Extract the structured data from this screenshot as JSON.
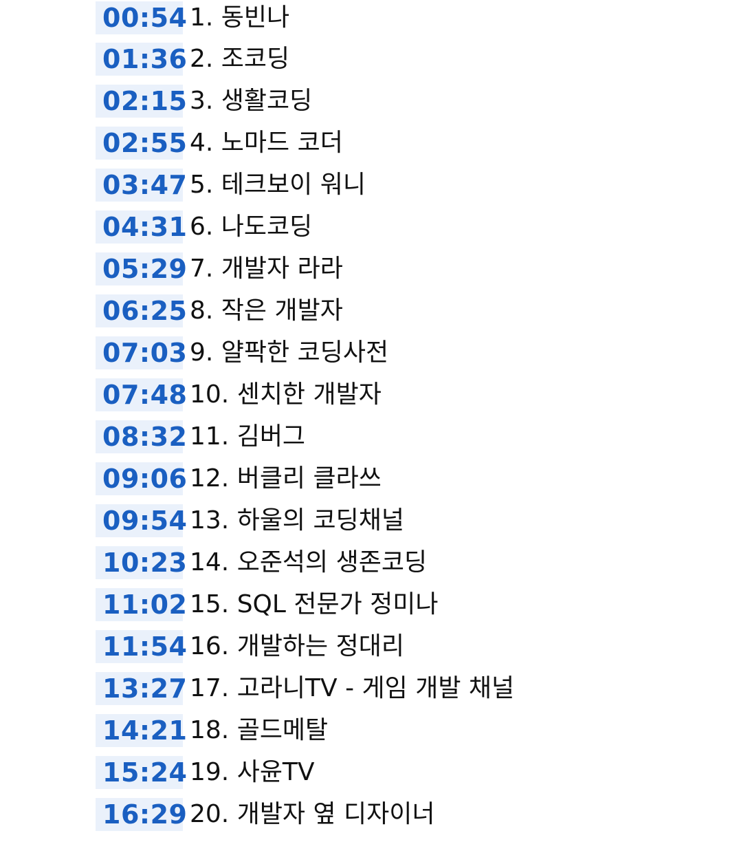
{
  "chapters": [
    {
      "time": "00:54",
      "title": "1. 동빈나"
    },
    {
      "time": "01:36",
      "title": "2. 조코딩"
    },
    {
      "time": "02:15",
      "title": "3. 생활코딩"
    },
    {
      "time": "02:55",
      "title": "4. 노마드 코더"
    },
    {
      "time": "03:47",
      "title": "5. 테크보이 워니"
    },
    {
      "time": "04:31",
      "title": "6. 나도코딩"
    },
    {
      "time": "05:29",
      "title": "7. 개발자 라라"
    },
    {
      "time": "06:25",
      "title": "8. 작은 개발자"
    },
    {
      "time": "07:03",
      "title": "9. 얄팍한 코딩사전"
    },
    {
      "time": "07:48",
      "title": "10. 센치한 개발자"
    },
    {
      "time": "08:32",
      "title": "11. 김버그"
    },
    {
      "time": "09:06",
      "title": "12. 버클리 클라쓰"
    },
    {
      "time": "09:54",
      "title": "13. 하울의 코딩채널"
    },
    {
      "time": "10:23",
      "title": "14. 오준석의 생존코딩"
    },
    {
      "time": "11:02",
      "title": "15. SQL 전문가 정미나"
    },
    {
      "time": "11:54",
      "title": "16. 개발하는 정대리"
    },
    {
      "time": "13:27",
      "title": "17. 고라니TV - 게임 개발 채널"
    },
    {
      "time": "14:21",
      "title": "18. 골드메탈"
    },
    {
      "time": "15:24",
      "title": "19. 사윤TV"
    },
    {
      "time": "16:29",
      "title": "20. 개발자 옆 디자이너"
    }
  ]
}
